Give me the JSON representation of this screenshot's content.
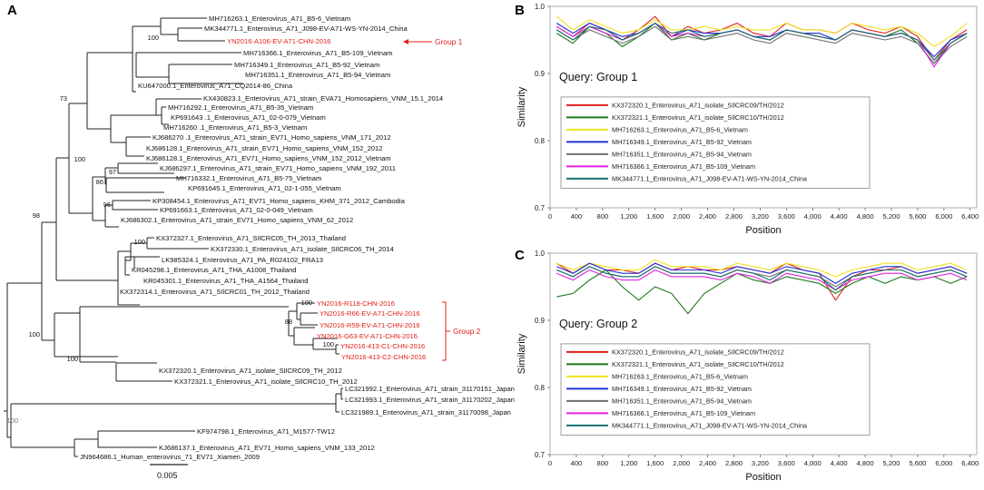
{
  "panels": {
    "a": {
      "letter": "A"
    },
    "b": {
      "letter": "B"
    },
    "c": {
      "letter": "C"
    }
  },
  "colors": {
    "tree_line": "#222222",
    "highlight": "#e0201a",
    "series": [
      "#e0201a",
      "#1a7a1a",
      "#f0e020",
      "#2030d8",
      "#707070",
      "#e020e0",
      "#1a7070"
    ]
  },
  "tree": {
    "scale_label": "0.005",
    "group1_label": "Group 1",
    "group2_label": "Group 2",
    "bootstrap": [
      "100",
      "73",
      "100",
      "97",
      "86",
      "96",
      "98",
      "100",
      "100",
      "88",
      "100",
      "100",
      "100",
      "100"
    ],
    "taxa": [
      "MH716263.1_Enterovirus_A71_B5-6_Vietnam",
      "MK344771.1_Enterovirus_A71_J098-EV-A71-WS-YN-2014_China",
      "YN2016-A106-EV-A71-CHN-2016",
      "MH716366.1_Enterovirus_A71_B5-109_Vietnam",
      "MH716349.1_Enterovirus_A71_B5-92_Vietnam",
      "MH716351.1_Enterovirus_A71_B5-94_Vietnam",
      "KU647000.1_Enterovirus_A71_CQ2014-86_China",
      "KX430823.1_Enterovirus_A71_strain_EVA71_Homosapiens_VNM_15.1_2014",
      "MH716292.1_Enterovirus_A71_B5-35_Vietnam",
      "KP691643 .1_Enterovirus_A71_02-0-079_Vietnam",
      "MH716260 .1_Enterovirus_A71_B5-3_Vietnam",
      "KJ686270 .1_Enterovirus_A71_strain_EV71_Homo_sapiens_VNM_171_2012",
      "KJ686128.1_Enterovirus_A71_strain_EV71_Homo_sapiens_VNM_152_2012",
      "KJ686128.1_Enterovirus_A71_EV71_Homo_sapiens_VNM_152_2012_Vietnam",
      "KJ686297.1_Enterovirus_A71_strain_EV71_Homo_sapiens_VNM_192_2011",
      "MH716332.1_Enterovirus_A71_B5-75_Vietnam",
      "KP691645.1_Enterovirus_A71_02-1-055_Vietnam",
      "KP308454.1_Enterovirus_A71_EV71_Homo_sapiens_KHM_371_2012_Cambodia",
      "KP691663.1_Enterovirus_A71_02-0-049_Vietnam",
      "KJ686302.1_Enterovirus_A71_strain_EV71_Homo_sapiens_VNM_62_2012",
      "KX372327.1_Enterovirus_A71_SIlCRC05_TH_2013_Thailand",
      "KX372330.1_Enterovirus_A71_isolate_SIlCRC06_TH_2014",
      "LK985324.1_Enterovirus_A71_PA_R024102_FRA13",
      "KR045298.1_Enterovirus_A71_THA_A1008_Thailand",
      "KR045301.1_Enterovirus_A71_THA_A1564_Thailand",
      "KX372314.1_Enterovirus_A71_SIlCRC01_TH_2012_Thailand",
      "YN2016-R118-CHN-2016",
      "YN2016-R66-EV-A71-CHN-2016",
      "YN2016-R59-EV-A71-CHN-2016",
      "YN2016-G63-EV-A71-CHN-2016",
      "YN2016-413-C1-CHN-2016",
      "YN2016-413-C2-CHN-2016",
      "KX372320.1_Enterovirus_A71_isolate_SIlCRC09_TH_2012",
      "KX372321.1_Enterovirus_A71_isolate_SIlCRC10_TH_2012",
      "LC321992.1_Enterovirus_A71_strain_31170151_Japan",
      "LC321993.1_Enterovirus_A71_strain_31170202_Japan",
      "LC321989.1_Enterovirus_A71_strain_31170098_Japan",
      "KF974798.1_Enterovirus_A71_M1577-TW12",
      "KJ686137.1_Enterovirus_A71_EV71_Homo_sapiens_VNM_133_2012",
      "JN964686.1_Human_enterovirus_71_EV71_Xiamen_2009"
    ]
  },
  "chart_data": [
    {
      "type": "line",
      "panel": "B",
      "annotation": "Query: Group 1",
      "xlabel": "Position",
      "ylabel": "Similarity",
      "xlim": [
        0,
        6500
      ],
      "ylim": [
        0.7,
        1.0
      ],
      "xticks": [
        0,
        400,
        800,
        1200,
        1600,
        2000,
        2400,
        2800,
        3200,
        3600,
        4000,
        4400,
        4800,
        5200,
        5600,
        6000,
        6400
      ],
      "xtick_labels": [
        "0",
        "400",
        "800",
        "1,200",
        "1,600",
        "2,000",
        "2,400",
        "2,800",
        "3,200",
        "3,600",
        "4,000",
        "4,400",
        "4,800",
        "5,200",
        "5,600",
        "6,000",
        "6,400"
      ],
      "yticks": [
        0.7,
        0.8,
        0.9,
        1.0
      ],
      "ytick_labels": [
        "0.7",
        "0.8",
        "0.9",
        "1.0"
      ],
      "x": [
        100,
        350,
        600,
        850,
        1100,
        1350,
        1600,
        1850,
        2100,
        2350,
        2600,
        2850,
        3100,
        3350,
        3600,
        3850,
        4100,
        4350,
        4600,
        4850,
        5100,
        5350,
        5600,
        5850,
        6100,
        6350
      ],
      "series": [
        {
          "name": "KX372320.1_Enterovirus_A71_isolate_SIlCRC09/TH/2012",
          "values": [
            0.97,
            0.955,
            0.975,
            0.965,
            0.95,
            0.965,
            0.985,
            0.955,
            0.97,
            0.96,
            0.965,
            0.975,
            0.96,
            0.955,
            0.975,
            0.965,
            0.965,
            0.96,
            0.975,
            0.965,
            0.96,
            0.97,
            0.955,
            0.92,
            0.95,
            0.965
          ]
        },
        {
          "name": "KX372321.1_Enterovirus_A71_isolate_SIlCRC10/TH/2012",
          "values": [
            0.96,
            0.945,
            0.97,
            0.96,
            0.94,
            0.955,
            0.975,
            0.95,
            0.96,
            0.95,
            0.96,
            0.965,
            0.955,
            0.95,
            0.965,
            0.96,
            0.955,
            0.95,
            0.965,
            0.96,
            0.955,
            0.965,
            0.945,
            0.915,
            0.945,
            0.96
          ]
        },
        {
          "name": "MH716263.1_Enterovirus_A71_B5-6_Vietnam",
          "values": [
            0.985,
            0.965,
            0.98,
            0.97,
            0.96,
            0.965,
            0.98,
            0.965,
            0.965,
            0.97,
            0.965,
            0.97,
            0.965,
            0.965,
            0.975,
            0.965,
            0.965,
            0.96,
            0.975,
            0.97,
            0.965,
            0.97,
            0.96,
            0.94,
            0.955,
            0.975
          ]
        },
        {
          "name": "MH716349.1_Enterovirus_A71_B5-92_Vietnam",
          "values": [
            0.975,
            0.96,
            0.975,
            0.965,
            0.955,
            0.96,
            0.975,
            0.955,
            0.965,
            0.96,
            0.96,
            0.965,
            0.955,
            0.955,
            0.965,
            0.96,
            0.96,
            0.95,
            0.965,
            0.96,
            0.955,
            0.96,
            0.95,
            0.925,
            0.95,
            0.96
          ]
        },
        {
          "name": "MH716351.1_Enterovirus_A71_B5-94_Vietnam",
          "values": [
            0.965,
            0.95,
            0.965,
            0.955,
            0.945,
            0.955,
            0.97,
            0.95,
            0.955,
            0.95,
            0.955,
            0.96,
            0.95,
            0.945,
            0.96,
            0.955,
            0.95,
            0.945,
            0.96,
            0.955,
            0.95,
            0.955,
            0.945,
            0.915,
            0.94,
            0.955
          ]
        },
        {
          "name": "MH716366.1_Enterovirus_A71_B5-109_Vietnam",
          "values": [
            0.97,
            0.955,
            0.97,
            0.96,
            0.95,
            0.96,
            0.975,
            0.955,
            0.96,
            0.955,
            0.96,
            0.965,
            0.955,
            0.95,
            0.965,
            0.96,
            0.955,
            0.95,
            0.965,
            0.96,
            0.955,
            0.96,
            0.95,
            0.91,
            0.945,
            0.96
          ]
        },
        {
          "name": "MK344771.1_Enterovirus_A71_J098-EV-A71-WS-YN-2014_China",
          "values": [
            0.965,
            0.95,
            0.97,
            0.965,
            0.95,
            0.96,
            0.975,
            0.96,
            0.965,
            0.955,
            0.96,
            0.965,
            0.955,
            0.95,
            0.965,
            0.96,
            0.955,
            0.95,
            0.965,
            0.96,
            0.955,
            0.96,
            0.95,
            0.92,
            0.945,
            0.96
          ]
        }
      ]
    },
    {
      "type": "line",
      "panel": "C",
      "annotation": "Query: Group 2",
      "xlabel": "Position",
      "ylabel": "Similarity",
      "xlim": [
        0,
        6500
      ],
      "ylim": [
        0.7,
        1.0
      ],
      "xticks": [
        0,
        400,
        800,
        1200,
        1600,
        2000,
        2400,
        2800,
        3200,
        3600,
        4000,
        4400,
        4800,
        5200,
        5600,
        6000,
        6400
      ],
      "xtick_labels": [
        "0",
        "400",
        "800",
        "1,200",
        "1,600",
        "2,000",
        "2,400",
        "2,800",
        "3,200",
        "3,600",
        "4,000",
        "4,400",
        "4,800",
        "5,200",
        "5,600",
        "6,000",
        "6,400"
      ],
      "yticks": [
        0.7,
        0.8,
        0.9,
        1.0
      ],
      "ytick_labels": [
        "0.7",
        "0.8",
        "0.9",
        "1.0"
      ],
      "x": [
        100,
        350,
        600,
        850,
        1100,
        1350,
        1600,
        1850,
        2100,
        2350,
        2600,
        2850,
        3100,
        3350,
        3600,
        3850,
        4100,
        4350,
        4600,
        4850,
        5100,
        5350,
        5600,
        5850,
        6100,
        6350
      ],
      "series": [
        {
          "name": "KX372320.1_Enterovirus_A71_isolate_SIlCRC09/TH/2012",
          "values": [
            0.985,
            0.97,
            0.985,
            0.975,
            0.975,
            0.97,
            0.985,
            0.975,
            0.98,
            0.975,
            0.975,
            0.98,
            0.975,
            0.97,
            0.985,
            0.975,
            0.97,
            0.93,
            0.965,
            0.975,
            0.975,
            0.98,
            0.97,
            0.975,
            0.98,
            0.97
          ]
        },
        {
          "name": "KX372321.1_Enterovirus_A71_isolate_SIlCRC10/TH/2012",
          "values": [
            0.935,
            0.94,
            0.96,
            0.975,
            0.95,
            0.93,
            0.95,
            0.94,
            0.91,
            0.94,
            0.955,
            0.97,
            0.96,
            0.955,
            0.965,
            0.96,
            0.955,
            0.94,
            0.955,
            0.965,
            0.955,
            0.965,
            0.96,
            0.965,
            0.955,
            0.965
          ]
        },
        {
          "name": "MH716263.1_Enterovirus_A71_B5-6_Vietnam",
          "values": [
            0.985,
            0.975,
            0.985,
            0.98,
            0.975,
            0.975,
            0.99,
            0.98,
            0.98,
            0.98,
            0.975,
            0.985,
            0.98,
            0.975,
            0.985,
            0.98,
            0.975,
            0.965,
            0.975,
            0.98,
            0.985,
            0.985,
            0.975,
            0.98,
            0.985,
            0.975
          ]
        },
        {
          "name": "MH716349.1_Enterovirus_A71_B5-92_Vietnam",
          "values": [
            0.98,
            0.97,
            0.985,
            0.975,
            0.97,
            0.97,
            0.985,
            0.975,
            0.975,
            0.975,
            0.97,
            0.98,
            0.975,
            0.97,
            0.98,
            0.975,
            0.97,
            0.955,
            0.97,
            0.975,
            0.98,
            0.98,
            0.97,
            0.975,
            0.98,
            0.97
          ]
        },
        {
          "name": "MH716351.1_Enterovirus_A71_B5-94_Vietnam",
          "values": [
            0.975,
            0.965,
            0.98,
            0.97,
            0.965,
            0.965,
            0.98,
            0.97,
            0.97,
            0.97,
            0.965,
            0.975,
            0.97,
            0.965,
            0.975,
            0.97,
            0.965,
            0.95,
            0.965,
            0.97,
            0.975,
            0.975,
            0.965,
            0.97,
            0.975,
            0.965
          ]
        },
        {
          "name": "MH716366.1_Enterovirus_A71_B5-109_Vietnam",
          "values": [
            0.97,
            0.96,
            0.975,
            0.965,
            0.96,
            0.96,
            0.975,
            0.965,
            0.965,
            0.965,
            0.96,
            0.97,
            0.965,
            0.955,
            0.97,
            0.965,
            0.96,
            0.945,
            0.96,
            0.965,
            0.97,
            0.97,
            0.96,
            0.965,
            0.97,
            0.96
          ]
        },
        {
          "name": "MK344771.1_Enterovirus_A71_J098-EV-A71-WS-YN-2014_China",
          "values": [
            0.975,
            0.965,
            0.98,
            0.97,
            0.965,
            0.965,
            0.98,
            0.97,
            0.97,
            0.97,
            0.965,
            0.975,
            0.97,
            0.96,
            0.975,
            0.97,
            0.965,
            0.945,
            0.965,
            0.97,
            0.975,
            0.975,
            0.965,
            0.97,
            0.975,
            0.965
          ]
        }
      ]
    }
  ]
}
